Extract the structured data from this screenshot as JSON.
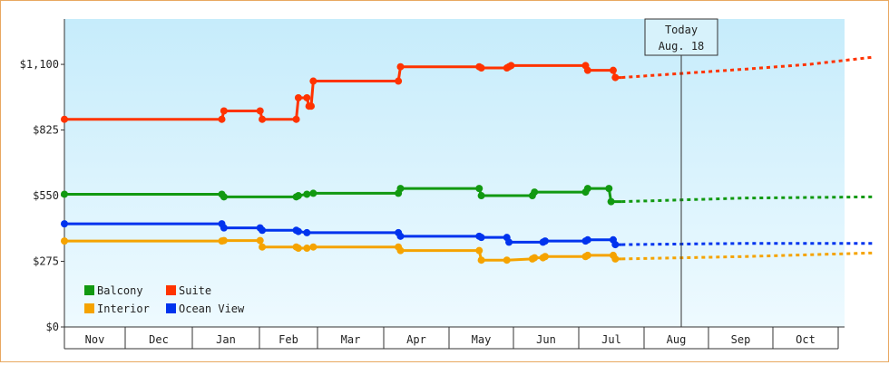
{
  "chart_data": {
    "type": "line",
    "y_ticks": [
      "$0",
      "$275",
      "$550",
      "$825",
      "$1,100"
    ],
    "y_tick_values": [
      0,
      275,
      550,
      825,
      1100
    ],
    "ylim": [
      0,
      1290
    ],
    "x_months": [
      "Nov",
      "Dec",
      "Jan",
      "Feb",
      "Mar",
      "Apr",
      "May",
      "Jun",
      "Jul",
      "Aug",
      "Sep",
      "Oct"
    ],
    "today_label": "Today",
    "today_date": "Aug. 18",
    "today_day": 290,
    "legend": [
      {
        "name": "Balcony",
        "color": "#119911"
      },
      {
        "name": "Suite",
        "color": "#ff3300"
      },
      {
        "name": "Interior",
        "color": "#f5a300"
      },
      {
        "name": "Ocean View",
        "color": "#0033ee"
      }
    ],
    "series": [
      {
        "name": "Suite",
        "color": "#ff3300",
        "points": [
          [
            0,
            870
          ],
          [
            74,
            870
          ],
          [
            75,
            905
          ],
          [
            92,
            905
          ],
          [
            93,
            870
          ],
          [
            109,
            870
          ],
          [
            110,
            960
          ],
          [
            114,
            960
          ],
          [
            115,
            925
          ],
          [
            116,
            925
          ],
          [
            117,
            1030
          ],
          [
            157,
            1030
          ],
          [
            158,
            1090
          ],
          [
            195,
            1090
          ],
          [
            196,
            1085
          ],
          [
            208,
            1085
          ],
          [
            209,
            1090
          ],
          [
            210,
            1095
          ],
          [
            245,
            1095
          ],
          [
            246,
            1075
          ],
          [
            258,
            1075
          ],
          [
            259,
            1045
          ],
          [
            262,
            1045
          ]
        ],
        "forecast": [
          [
            262,
            1045
          ],
          [
            320,
            1080
          ],
          [
            350,
            1100
          ],
          [
            380,
            1130
          ]
        ]
      },
      {
        "name": "Balcony",
        "color": "#119911",
        "points": [
          [
            0,
            556
          ],
          [
            74,
            556
          ],
          [
            75,
            545
          ],
          [
            92,
            545
          ],
          [
            93,
            545
          ],
          [
            109,
            545
          ],
          [
            110,
            550
          ],
          [
            114,
            556
          ],
          [
            117,
            560
          ],
          [
            157,
            560
          ],
          [
            158,
            580
          ],
          [
            195,
            580
          ],
          [
            196,
            550
          ],
          [
            208,
            550
          ],
          [
            220,
            550
          ],
          [
            221,
            565
          ],
          [
            245,
            565
          ],
          [
            246,
            580
          ],
          [
            256,
            580
          ],
          [
            257,
            525
          ],
          [
            262,
            525
          ]
        ],
        "forecast": [
          [
            262,
            525
          ],
          [
            320,
            540
          ],
          [
            380,
            545
          ]
        ]
      },
      {
        "name": "Ocean View",
        "color": "#0033ee",
        "points": [
          [
            0,
            432
          ],
          [
            74,
            432
          ],
          [
            75,
            415
          ],
          [
            92,
            415
          ],
          [
            93,
            405
          ],
          [
            109,
            405
          ],
          [
            110,
            400
          ],
          [
            114,
            395
          ],
          [
            117,
            395
          ],
          [
            157,
            395
          ],
          [
            158,
            380
          ],
          [
            195,
            380
          ],
          [
            196,
            375
          ],
          [
            208,
            375
          ],
          [
            209,
            355
          ],
          [
            225,
            355
          ],
          [
            226,
            360
          ],
          [
            245,
            360
          ],
          [
            246,
            365
          ],
          [
            258,
            365
          ],
          [
            259,
            345
          ],
          [
            262,
            345
          ]
        ],
        "forecast": [
          [
            262,
            345
          ],
          [
            320,
            350
          ],
          [
            380,
            350
          ]
        ]
      },
      {
        "name": "Interior",
        "color": "#f5a300",
        "points": [
          [
            0,
            360
          ],
          [
            74,
            360
          ],
          [
            75,
            362
          ],
          [
            92,
            362
          ],
          [
            93,
            335
          ],
          [
            109,
            335
          ],
          [
            110,
            330
          ],
          [
            114,
            330
          ],
          [
            117,
            335
          ],
          [
            157,
            335
          ],
          [
            158,
            320
          ],
          [
            195,
            320
          ],
          [
            196,
            280
          ],
          [
            208,
            280
          ],
          [
            220,
            285
          ],
          [
            221,
            290
          ],
          [
            225,
            290
          ],
          [
            226,
            295
          ],
          [
            245,
            295
          ],
          [
            246,
            300
          ],
          [
            258,
            300
          ],
          [
            259,
            285
          ],
          [
            262,
            285
          ]
        ],
        "forecast": [
          [
            262,
            285
          ],
          [
            320,
            295
          ],
          [
            380,
            310
          ]
        ]
      }
    ]
  }
}
